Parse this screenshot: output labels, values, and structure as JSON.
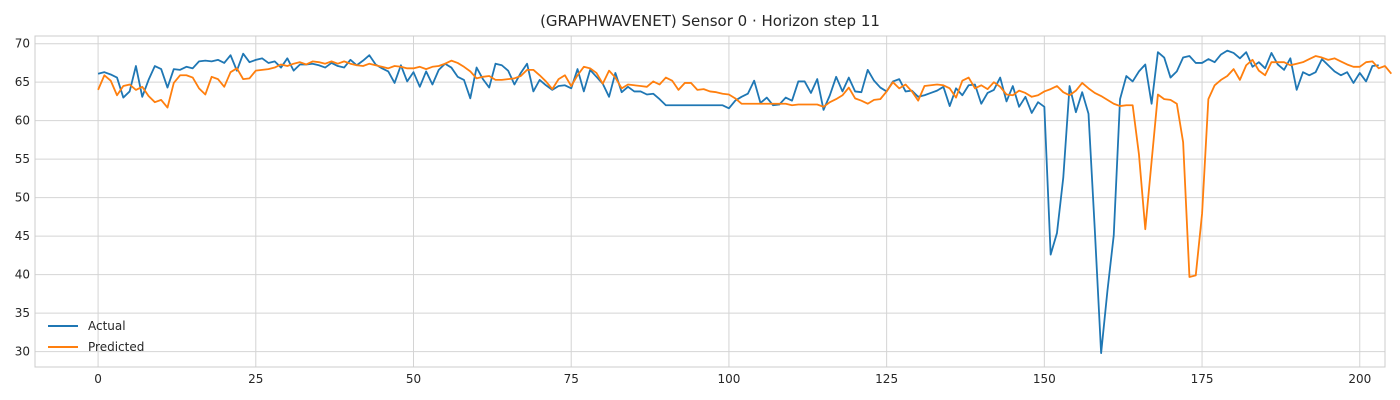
{
  "chart_data": {
    "type": "line",
    "title": "(GRAPHWAVENET) Sensor 0 · Horizon step 11",
    "xlabel": "",
    "ylabel": "",
    "xlim": [
      -10,
      204
    ],
    "ylim": [
      28,
      71
    ],
    "x_ticks": [
      0,
      25,
      50,
      75,
      100,
      125,
      150,
      175,
      200
    ],
    "y_ticks": [
      30,
      35,
      40,
      45,
      50,
      55,
      60,
      65,
      70
    ],
    "grid": true,
    "legend_position": "lower-left",
    "series": [
      {
        "name": "Actual",
        "color": "#1f77b4",
        "values": [
          66.1,
          66.3,
          66.0,
          65.6,
          63.0,
          63.8,
          67.1,
          63.1,
          65.3,
          67.1,
          66.7,
          64.3,
          66.7,
          66.6,
          67.0,
          66.8,
          67.7,
          67.8,
          67.7,
          67.9,
          67.5,
          68.5,
          66.5,
          68.7,
          67.6,
          67.9,
          68.1,
          67.5,
          67.7,
          66.9,
          68.1,
          66.5,
          67.3,
          67.3,
          67.4,
          67.2,
          66.9,
          67.5,
          67.1,
          66.9,
          67.9,
          67.2,
          67.8,
          68.5,
          67.3,
          66.8,
          66.4,
          64.9,
          67.2,
          65.1,
          66.3,
          64.4,
          66.4,
          64.7,
          66.6,
          67.4,
          66.9,
          65.7,
          65.3,
          62.9,
          66.9,
          65.4,
          64.3,
          67.4,
          67.2,
          66.5,
          64.7,
          66.2,
          67.4,
          63.8,
          65.3,
          64.6,
          64.0,
          64.5,
          64.6,
          64.2,
          66.7,
          63.8,
          66.6,
          65.7,
          64.8,
          63.1,
          66.2,
          63.7,
          64.4,
          63.8,
          63.8,
          63.4,
          63.5,
          62.8,
          62.0,
          62.0,
          62.0,
          62.0,
          62.0,
          62.0,
          62.0,
          62.0,
          62.0,
          62.0,
          61.6,
          62.6,
          63.1,
          63.5,
          65.2,
          62.3,
          63.0,
          62.0,
          62.1,
          63.0,
          62.6,
          65.1,
          65.1,
          63.6,
          65.4,
          61.4,
          63.3,
          65.7,
          63.8,
          65.6,
          63.8,
          63.7,
          66.6,
          65.2,
          64.3,
          63.8,
          65.1,
          65.4,
          63.8,
          63.9,
          63.1,
          63.3,
          63.6,
          63.9,
          64.4,
          61.9,
          64.2,
          63.3,
          64.6,
          64.7,
          62.2,
          63.6,
          64.0,
          65.6,
          62.5,
          64.5,
          61.8,
          63.1,
          61.0,
          62.4,
          61.8,
          42.6,
          45.4,
          52.6,
          64.5,
          61.1,
          63.7,
          60.9,
          45.8,
          29.8,
          37.9,
          45.1,
          62.8,
          65.8,
          65.1,
          66.4,
          67.3,
          62.2,
          68.9,
          68.2,
          65.6,
          66.4,
          68.2,
          68.4,
          67.5,
          67.5,
          68.0,
          67.6,
          68.6,
          69.1,
          68.8,
          68.1,
          68.9,
          67.0,
          67.6,
          66.8,
          68.8,
          67.3,
          66.6,
          68.1,
          64.0,
          66.3,
          65.9,
          66.3,
          68.0,
          67.2,
          66.4,
          65.9,
          66.3,
          64.9,
          66.2,
          65.1,
          67.1,
          67.2
        ]
      },
      {
        "name": "Predicted",
        "color": "#ff7f0e",
        "values": [
          64.0,
          65.9,
          65.2,
          63.3,
          64.5,
          64.7,
          64.0,
          64.4,
          63.2,
          62.4,
          62.7,
          61.7,
          64.9,
          65.9,
          65.9,
          65.6,
          64.2,
          63.4,
          65.7,
          65.4,
          64.4,
          66.3,
          66.8,
          65.4,
          65.5,
          66.5,
          66.6,
          66.7,
          66.9,
          67.3,
          67.1,
          67.4,
          67.6,
          67.3,
          67.7,
          67.6,
          67.4,
          67.7,
          67.4,
          67.7,
          67.4,
          67.2,
          67.1,
          67.4,
          67.2,
          67.0,
          66.8,
          67.1,
          67.0,
          66.8,
          66.8,
          67.0,
          66.7,
          67.0,
          67.1,
          67.4,
          67.8,
          67.5,
          67.0,
          66.4,
          65.5,
          65.7,
          65.8,
          65.3,
          65.3,
          65.4,
          65.5,
          65.8,
          66.6,
          66.6,
          65.9,
          65.1,
          64.1,
          65.4,
          65.9,
          64.5,
          65.9,
          67.0,
          66.8,
          66.2,
          64.8,
          66.5,
          65.6,
          64.2,
          64.7,
          64.6,
          64.5,
          64.4,
          65.1,
          64.7,
          65.6,
          65.2,
          64.0,
          64.9,
          64.9,
          64.0,
          64.1,
          63.8,
          63.7,
          63.5,
          63.4,
          62.9,
          62.2,
          62.2,
          62.2,
          62.2,
          62.2,
          62.2,
          62.2,
          62.2,
          62.0,
          62.1,
          62.1,
          62.1,
          62.1,
          61.8,
          62.4,
          62.8,
          63.3,
          64.3,
          62.9,
          62.6,
          62.2,
          62.7,
          62.8,
          63.8,
          65.0,
          64.2,
          64.7,
          63.8,
          62.6,
          64.5,
          64.6,
          64.7,
          64.6,
          64.2,
          63.0,
          65.2,
          65.6,
          64.2,
          64.6,
          64.1,
          65.0,
          64.4,
          63.4,
          63.3,
          63.9,
          63.6,
          63.1,
          63.3,
          63.8,
          64.1,
          64.5,
          63.7,
          63.3,
          63.9,
          64.9,
          64.2,
          63.6,
          63.2,
          62.7,
          62.2,
          61.9,
          62.0,
          62.0,
          55.6,
          45.9,
          54.7,
          63.4,
          62.8,
          62.7,
          62.2,
          57.2,
          39.7,
          39.9,
          47.9,
          62.8,
          64.6,
          65.3,
          65.8,
          66.7,
          65.3,
          67.2,
          67.9,
          66.5,
          65.9,
          67.6,
          67.6,
          67.6,
          67.2,
          67.4,
          67.6,
          68.0,
          68.4,
          68.2,
          67.9,
          68.1,
          67.7,
          67.3,
          67.0,
          67.0,
          67.6,
          67.7,
          66.8,
          67.1,
          66.1
        ]
      }
    ]
  }
}
